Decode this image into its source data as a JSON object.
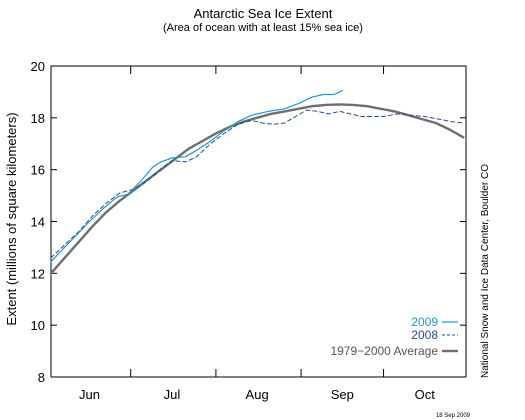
{
  "chart_data": {
    "type": "line",
    "title": "Antarctic Sea Ice Extent",
    "subtitle": "(Area of ocean with at least 15% sea ice)",
    "ylabel": "Extent (millions of square kilometers)",
    "xlabel": "",
    "ylim": [
      8,
      20
    ],
    "yticks": [
      8,
      10,
      12,
      14,
      16,
      18,
      20
    ],
    "x_axis": {
      "unit": "day of year",
      "range": [
        153,
        304
      ]
    },
    "month_labels": [
      {
        "label": "Jun",
        "day": 167
      },
      {
        "label": "Jul",
        "day": 197
      },
      {
        "label": "Aug",
        "day": 228
      },
      {
        "label": "Sep",
        "day": 259
      },
      {
        "label": "Oct",
        "day": 289
      }
    ],
    "month_boundaries": [
      182,
      213,
      244,
      274
    ],
    "grid": false,
    "legend_position": "bottom-right",
    "credit": "National Snow and Ice Data Center, Boulder CO",
    "date_stamp": "18 Sep 2009",
    "series": [
      {
        "name": "2009",
        "color": "#1b9ad6",
        "style": "solid",
        "points": [
          [
            153,
            12.45
          ],
          [
            157,
            12.9
          ],
          [
            162,
            13.45
          ],
          [
            167,
            14.0
          ],
          [
            172,
            14.5
          ],
          [
            177,
            14.95
          ],
          [
            181,
            15.05
          ],
          [
            186,
            15.6
          ],
          [
            190,
            16.1
          ],
          [
            193,
            16.3
          ],
          [
            197,
            16.45
          ],
          [
            202,
            16.5
          ],
          [
            206,
            16.75
          ],
          [
            211,
            17.1
          ],
          [
            216,
            17.5
          ],
          [
            221,
            17.85
          ],
          [
            226,
            18.1
          ],
          [
            232,
            18.25
          ],
          [
            238,
            18.35
          ],
          [
            243,
            18.55
          ],
          [
            248,
            18.8
          ],
          [
            252,
            18.9
          ],
          [
            256,
            18.9
          ],
          [
            259,
            19.05
          ]
        ]
      },
      {
        "name": "2008",
        "color": "#1f4e96",
        "style": "dashed",
        "points": [
          [
            153,
            12.6
          ],
          [
            158,
            13.1
          ],
          [
            163,
            13.6
          ],
          [
            168,
            14.2
          ],
          [
            173,
            14.7
          ],
          [
            178,
            15.1
          ],
          [
            183,
            15.25
          ],
          [
            188,
            15.55
          ],
          [
            192,
            15.95
          ],
          [
            197,
            16.35
          ],
          [
            202,
            16.3
          ],
          [
            206,
            16.5
          ],
          [
            211,
            17.0
          ],
          [
            216,
            17.4
          ],
          [
            221,
            17.75
          ],
          [
            226,
            17.9
          ],
          [
            230,
            17.8
          ],
          [
            234,
            17.75
          ],
          [
            238,
            17.8
          ],
          [
            242,
            18.05
          ],
          [
            246,
            18.3
          ],
          [
            250,
            18.25
          ],
          [
            254,
            18.15
          ],
          [
            258,
            18.25
          ],
          [
            262,
            18.15
          ],
          [
            266,
            18.05
          ],
          [
            270,
            18.05
          ],
          [
            274,
            18.05
          ],
          [
            279,
            18.15
          ],
          [
            284,
            18.1
          ],
          [
            289,
            18.05
          ],
          [
            294,
            17.95
          ],
          [
            299,
            17.85
          ],
          [
            303,
            17.8
          ]
        ]
      },
      {
        "name": "1979−2000 Average",
        "color": "#6e6e6e",
        "style": "solid-thick",
        "points": [
          [
            153,
            12.0
          ],
          [
            158,
            12.6
          ],
          [
            163,
            13.2
          ],
          [
            168,
            13.8
          ],
          [
            173,
            14.35
          ],
          [
            178,
            14.8
          ],
          [
            183,
            15.2
          ],
          [
            188,
            15.6
          ],
          [
            193,
            16.0
          ],
          [
            198,
            16.4
          ],
          [
            203,
            16.8
          ],
          [
            208,
            17.1
          ],
          [
            213,
            17.4
          ],
          [
            218,
            17.65
          ],
          [
            223,
            17.85
          ],
          [
            228,
            18.0
          ],
          [
            233,
            18.15
          ],
          [
            238,
            18.25
          ],
          [
            243,
            18.35
          ],
          [
            248,
            18.45
          ],
          [
            253,
            18.5
          ],
          [
            258,
            18.52
          ],
          [
            263,
            18.5
          ],
          [
            268,
            18.45
          ],
          [
            273,
            18.35
          ],
          [
            278,
            18.25
          ],
          [
            283,
            18.1
          ],
          [
            288,
            17.95
          ],
          [
            293,
            17.8
          ],
          [
            298,
            17.55
          ],
          [
            303,
            17.25
          ]
        ]
      }
    ]
  }
}
